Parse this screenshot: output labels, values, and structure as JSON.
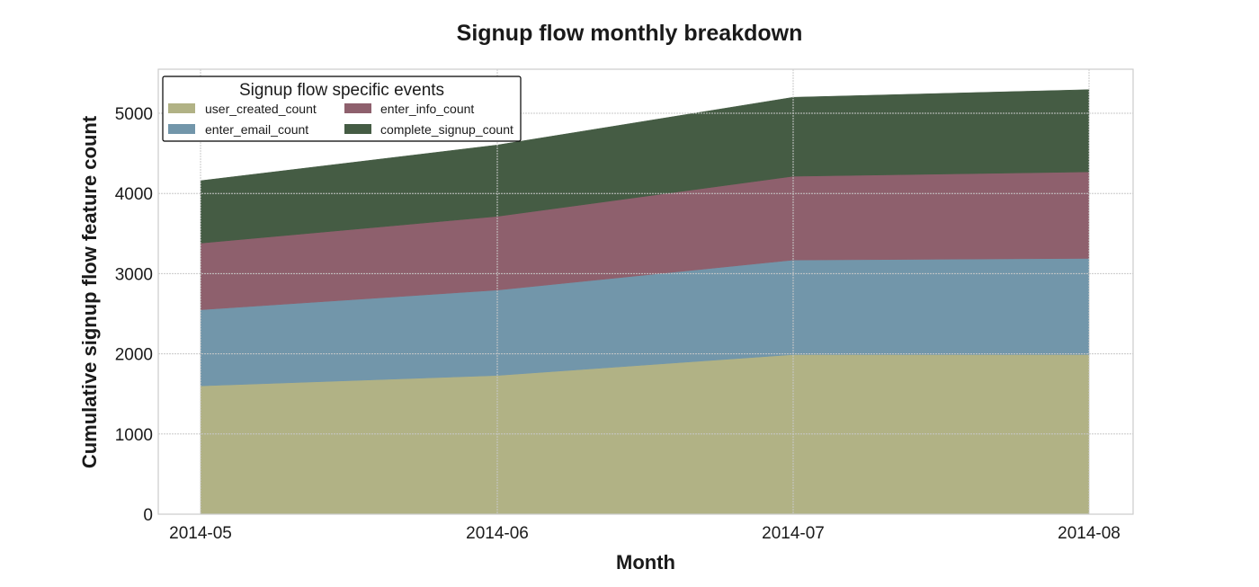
{
  "chart_data": {
    "type": "area",
    "stacked": true,
    "title": "Signup flow monthly breakdown",
    "xlabel": "Month",
    "ylabel": "Cumulative signup flow feature count",
    "categories": [
      "2014-05",
      "2014-06",
      "2014-07",
      "2014-08"
    ],
    "ylim": [
      0,
      5550
    ],
    "yticks": [
      0,
      1000,
      2000,
      3000,
      4000,
      5000
    ],
    "grid": true,
    "legend": {
      "title": "Signup flow specific events",
      "placement": "top-left",
      "columns": 2
    },
    "series": [
      {
        "name": "user_created_count",
        "color": "#b1b285",
        "values": [
          1600,
          1730,
          1990,
          1990
        ]
      },
      {
        "name": "enter_email_count",
        "color": "#7296aa",
        "values": [
          950,
          1065,
          1180,
          1200
        ]
      },
      {
        "name": "enter_info_count",
        "color": "#8e606d",
        "values": [
          830,
          920,
          1045,
          1080
        ]
      },
      {
        "name": "complete_signup_count",
        "color": "#455c44",
        "values": [
          780,
          890,
          985,
          1025
        ]
      }
    ]
  }
}
